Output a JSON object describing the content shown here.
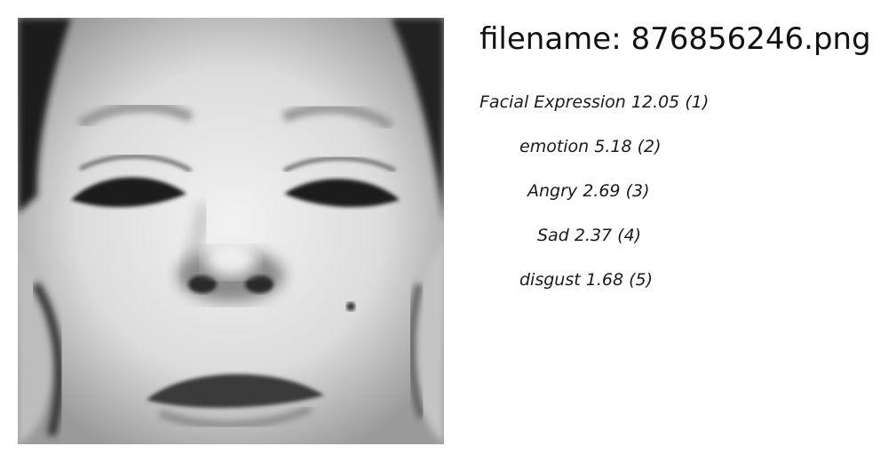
{
  "filename_line": "filename: 876856246.png",
  "labels": [
    {
      "name": "Facial Expression",
      "score": "12.05",
      "rank": "(1)"
    },
    {
      "name": "emotion",
      "score": "5.18",
      "rank": "(2)"
    },
    {
      "name": "Angry",
      "score": "2.69",
      "rank": "(3)"
    },
    {
      "name": "Sad",
      "score": "2.37",
      "rank": "(4)"
    },
    {
      "name": "disgust",
      "score": "1.68",
      "rank": "(5)"
    }
  ]
}
